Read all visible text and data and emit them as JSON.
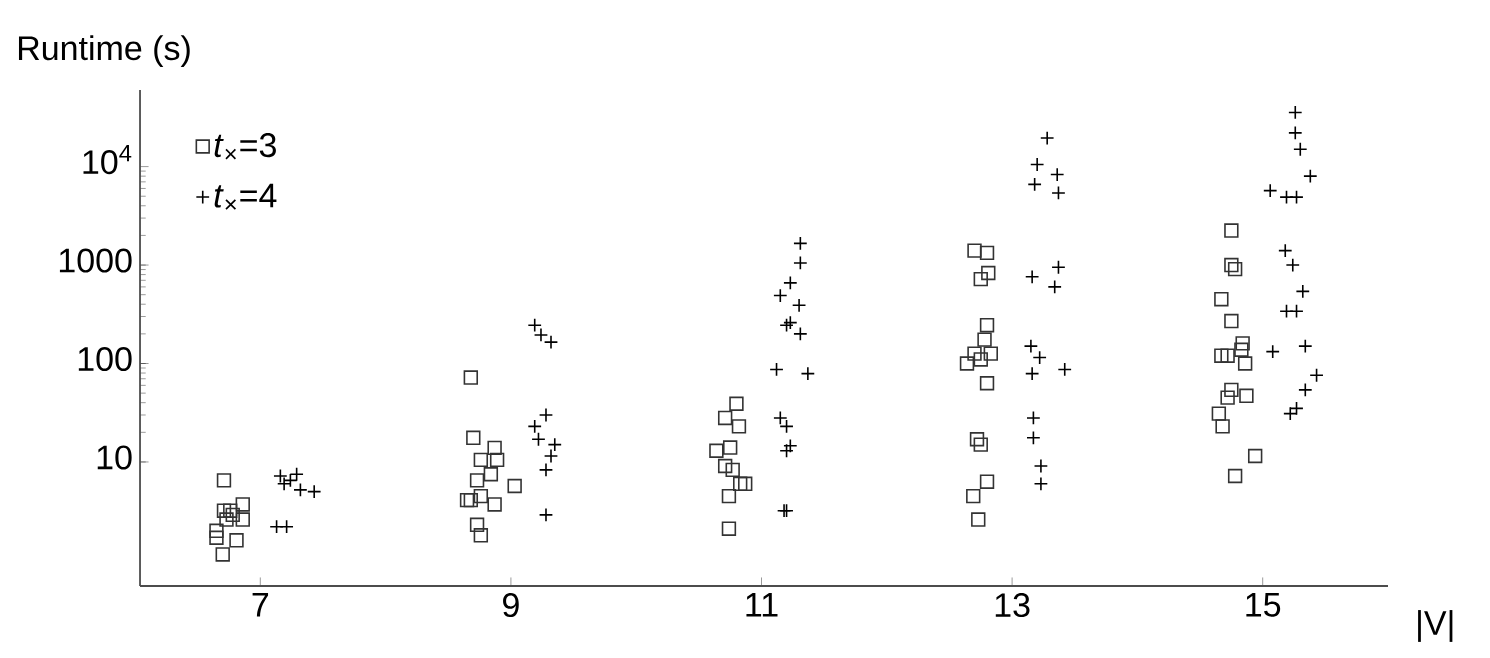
{
  "chart_data": {
    "type": "scatter",
    "ylabel": "Runtime (s)",
    "xlabel": "|V|",
    "log": "y",
    "legend": "top left",
    "grid": false,
    "xlim": [
      6.04,
      16.0
    ],
    "xticks": [
      7,
      9,
      11,
      13,
      15
    ],
    "ylim": [
      0.55,
      60000
    ],
    "yticks": [
      10,
      100,
      1000,
      {
        "value": 10000,
        "label": "10$^{4}$"
      }
    ],
    "series": [
      {
        "name": "*t*$_{×}$=3",
        "color": "#333333",
        "marker": "square",
        "x": [
          6.71,
          6.71,
          6.76,
          6.86,
          6.86,
          6.73,
          6.65,
          6.65,
          6.81,
          6.7,
          6.78,
          8.68,
          8.7,
          8.87,
          8.76,
          8.73,
          8.84,
          8.89,
          8.65,
          8.76,
          8.87,
          9.03,
          8.73,
          8.76,
          8.68,
          10.71,
          10.8,
          10.82,
          10.64,
          10.75,
          10.77,
          10.83,
          10.74,
          10.74,
          10.87,
          10.71,
          12.7,
          12.8,
          12.75,
          12.81,
          12.8,
          12.78,
          12.7,
          12.83,
          12.64,
          12.75,
          12.8,
          12.72,
          12.75,
          12.8,
          12.69,
          12.73,
          14.75,
          14.75,
          14.78,
          14.67,
          14.75,
          14.67,
          14.72,
          14.84,
          14.86,
          14.83,
          14.75,
          14.72,
          14.87,
          14.65,
          14.68,
          14.94,
          14.78
        ],
        "values": [
          6.5,
          3.2,
          3.2,
          3.7,
          2.6,
          2.6,
          2.0,
          1.7,
          1.6,
          1.15,
          2.9,
          72,
          17.6,
          13.9,
          10.5,
          6.5,
          7.5,
          10.5,
          4.1,
          4.5,
          3.7,
          5.7,
          2.3,
          1.8,
          4.1,
          28,
          39,
          23,
          13,
          14,
          8.3,
          6.0,
          4.5,
          2.1,
          6.0,
          9.1,
          1400,
          1330,
          720,
          830,
          245,
          175,
          126,
          126,
          100,
          110,
          63,
          17,
          15,
          6.3,
          4.5,
          2.6,
          2240,
          1000,
          910,
          450,
          270,
          120,
          120,
          160,
          100,
          138,
          54,
          45,
          47,
          31,
          23,
          11.5,
          7.2
        ]
      },
      {
        "name": "*t*$_{×}$=4",
        "color": "#000000",
        "marker": "cross",
        "x": [
          7.16,
          7.24,
          7.29,
          7.32,
          7.43,
          7.13,
          7.21,
          7.19,
          9.19,
          9.24,
          9.32,
          9.19,
          9.28,
          9.22,
          9.35,
          9.32,
          9.28,
          9.28,
          11.31,
          11.31,
          11.23,
          11.3,
          11.23,
          11.31,
          11.37,
          11.2,
          11.23,
          11.2,
          11.15,
          11.12,
          11.15,
          11.2,
          11.18,
          11.2,
          13.28,
          13.2,
          13.18,
          13.36,
          13.37,
          13.16,
          13.37,
          13.34,
          13.15,
          13.22,
          13.16,
          13.42,
          13.17,
          13.17,
          13.23,
          13.23,
          15.26,
          15.26,
          15.3,
          15.38,
          15.06,
          15.19,
          15.27,
          15.18,
          15.24,
          15.32,
          15.19,
          15.27,
          15.08,
          15.34,
          15.43,
          15.34,
          15.27,
          15.22
        ],
        "values": [
          7.2,
          6.5,
          7.5,
          5.2,
          5.0,
          2.2,
          2.2,
          6.0,
          245,
          195,
          165,
          23,
          30,
          17,
          15,
          11.5,
          8.3,
          2.9,
          1660,
          1050,
          660,
          390,
          260,
          200,
          79,
          23,
          14.6,
          3.2,
          490,
          87,
          28,
          13,
          3.2,
          245,
          19500,
          10500,
          6600,
          8300,
          5400,
          760,
          950,
          600,
          150,
          115,
          79,
          87,
          28,
          17.6,
          9.1,
          6.0,
          35500,
          22000,
          15000,
          8000,
          5700,
          4900,
          4900,
          1400,
          1000,
          540,
          340,
          340,
          132,
          150,
          76,
          54,
          35,
          31
        ]
      }
    ]
  }
}
